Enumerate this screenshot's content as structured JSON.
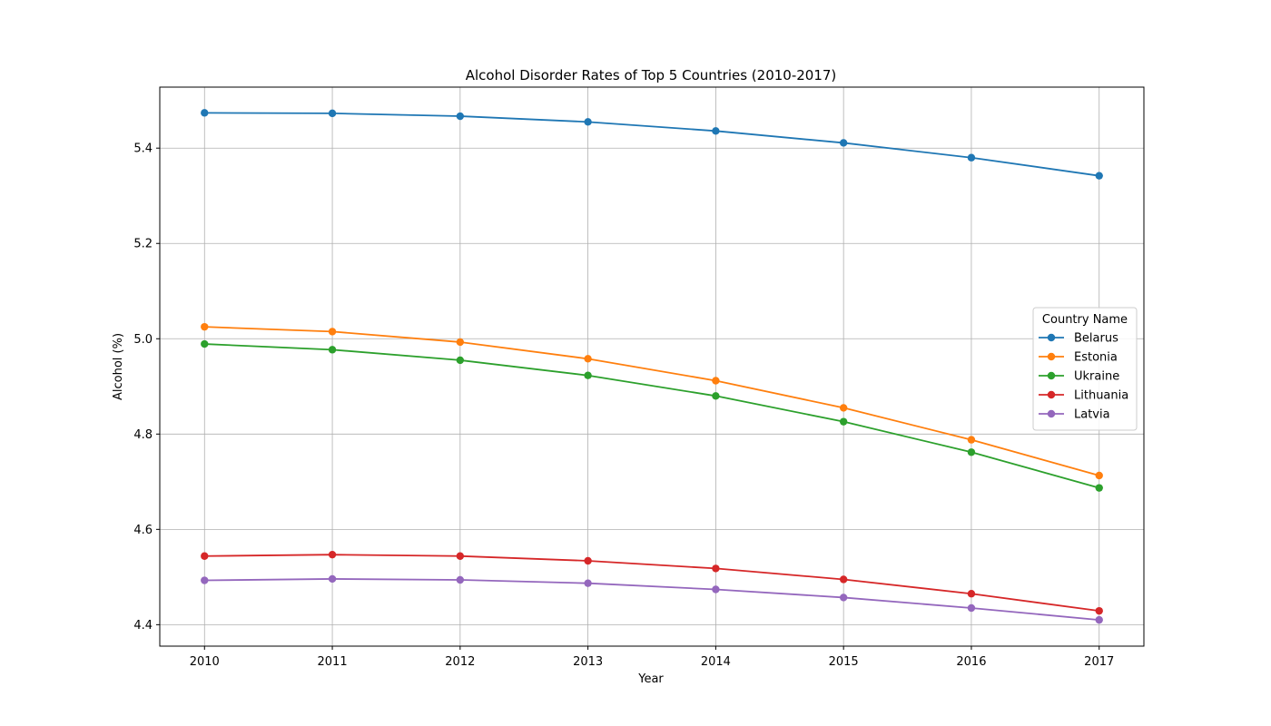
{
  "chart_data": {
    "type": "line",
    "title": "Alcohol Disorder Rates of Top 5 Countries (2010-2017)",
    "xlabel": "Year",
    "ylabel": "Alcohol (%)",
    "x": [
      2010,
      2011,
      2012,
      2013,
      2014,
      2015,
      2016,
      2017
    ],
    "xlim": [
      2009.65,
      2017.35
    ],
    "ylim": [
      4.355,
      5.528
    ],
    "yticks": [
      4.4,
      4.6,
      4.8,
      5.0,
      5.2,
      5.4
    ],
    "ytick_labels": [
      "4.4",
      "4.6",
      "4.8",
      "5.0",
      "5.2",
      "5.4"
    ],
    "xtick_labels": [
      "2010",
      "2011",
      "2012",
      "2013",
      "2014",
      "2015",
      "2016",
      "2017"
    ],
    "grid": true,
    "legend": {
      "title": "Country Name",
      "placement": "center-right"
    },
    "series": [
      {
        "name": "Belarus",
        "color": "#1f77b4",
        "values": [
          5.474,
          5.473,
          5.467,
          5.455,
          5.436,
          5.411,
          5.38,
          5.342
        ]
      },
      {
        "name": "Estonia",
        "color": "#ff7f0e",
        "values": [
          5.025,
          5.015,
          4.993,
          4.958,
          4.912,
          4.855,
          4.788,
          4.713
        ]
      },
      {
        "name": "Ukraine",
        "color": "#2ca02c",
        "values": [
          4.989,
          4.977,
          4.955,
          4.923,
          4.88,
          4.826,
          4.762,
          4.687
        ]
      },
      {
        "name": "Lithuania",
        "color": "#d62728",
        "values": [
          4.544,
          4.547,
          4.544,
          4.534,
          4.518,
          4.495,
          4.465,
          4.429
        ]
      },
      {
        "name": "Latvia",
        "color": "#9467bd",
        "values": [
          4.493,
          4.496,
          4.494,
          4.487,
          4.474,
          4.457,
          4.435,
          4.41
        ]
      }
    ]
  }
}
